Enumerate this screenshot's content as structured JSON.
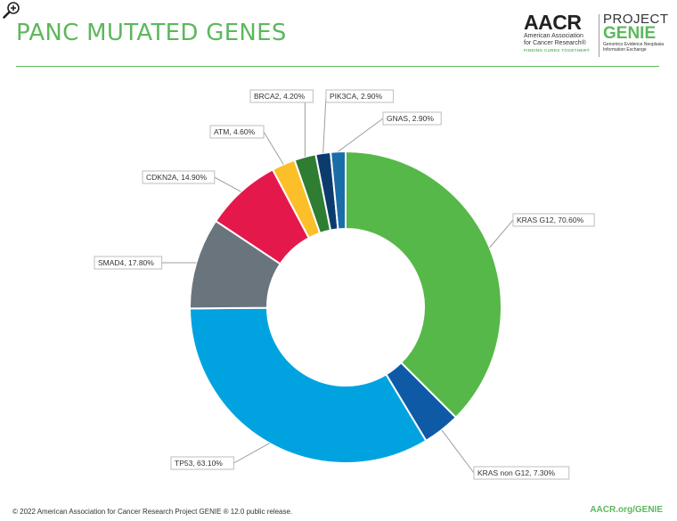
{
  "title": "PANC MUTATED GENES",
  "logo": {
    "aacr_word": "AACR",
    "aacr_line1": "American Association",
    "aacr_line2": "for Cancer Research®",
    "aacr_tagline": "FINDING CURES TOGETHER®",
    "project_word": "PROJECT",
    "genie_word": "GENIE",
    "genie_line1": "Genomics Evidence Neoplasia",
    "genie_line2": "Information Exchange"
  },
  "colors": {
    "accent": "#5cb85c",
    "kras_g12": "#55b848",
    "kras_non_g12": "#0f5aa6",
    "tp53": "#00a3e0",
    "smad4": "#6a747c",
    "cdkn2a": "#e5184c",
    "atm": "#fbbf2a",
    "brca2": "#2e7d32",
    "pik3ca": "#0c3c6e",
    "gnas": "#1a6da8"
  },
  "chart_data": {
    "type": "pie",
    "donut": true,
    "title": "PANC MUTATED GENES",
    "slices": [
      {
        "label": "KRAS G12, 70.60%",
        "gene": "KRAS G12",
        "value": 70.6,
        "color": "#55b848"
      },
      {
        "label": "KRAS non G12, 7.30%",
        "gene": "KRAS non G12",
        "value": 7.3,
        "color": "#0f5aa6"
      },
      {
        "label": "TP53, 63.10%",
        "gene": "TP53",
        "value": 63.1,
        "color": "#00a3e0"
      },
      {
        "label": "SMAD4, 17.80%",
        "gene": "SMAD4",
        "value": 17.8,
        "color": "#6a747c"
      },
      {
        "label": "CDKN2A, 14.90%",
        "gene": "CDKN2A",
        "value": 14.9,
        "color": "#e5184c"
      },
      {
        "label": "ATM, 4.60%",
        "gene": "ATM",
        "value": 4.6,
        "color": "#fbbf2a"
      },
      {
        "label": "BRCA2, 4.20%",
        "gene": "BRCA2",
        "value": 4.2,
        "color": "#2e7d32"
      },
      {
        "label": "PIK3CA, 2.90%",
        "gene": "PIK3CA",
        "value": 2.9,
        "color": "#0c3c6e"
      },
      {
        "label": "GNAS, 2.90%",
        "gene": "GNAS",
        "value": 2.9,
        "color": "#1a6da8"
      }
    ]
  },
  "footer": {
    "copyright": "© 2022 American Association for Cancer Research Project GENIE ® 12.0 public release.",
    "link": "AACR.org/GENIE"
  }
}
